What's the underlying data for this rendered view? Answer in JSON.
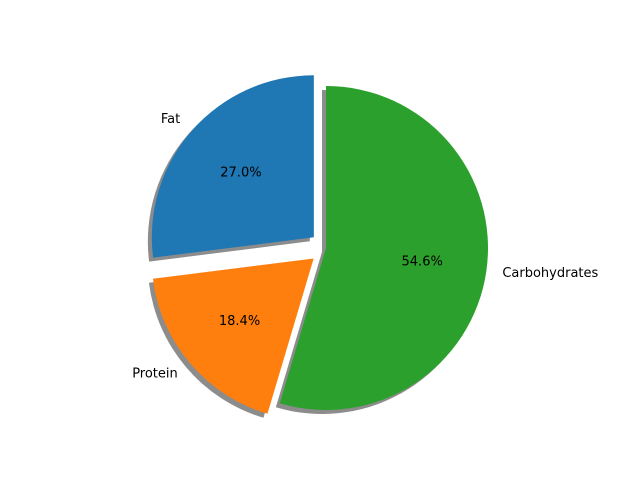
{
  "chart_data": {
    "type": "pie",
    "labels": [
      "Fat",
      "Protein",
      "Carbohydrates"
    ],
    "values": [
      27.0,
      18.4,
      54.6
    ],
    "percent_labels": [
      "27.0%",
      "18.4%",
      "54.6%"
    ],
    "colors": [
      "#1f77b4",
      "#ff7f0e",
      "#2ca02c"
    ],
    "explode": [
      0.1,
      0.1,
      0.0
    ],
    "start_angle": 90,
    "shadow": true,
    "title": ""
  }
}
